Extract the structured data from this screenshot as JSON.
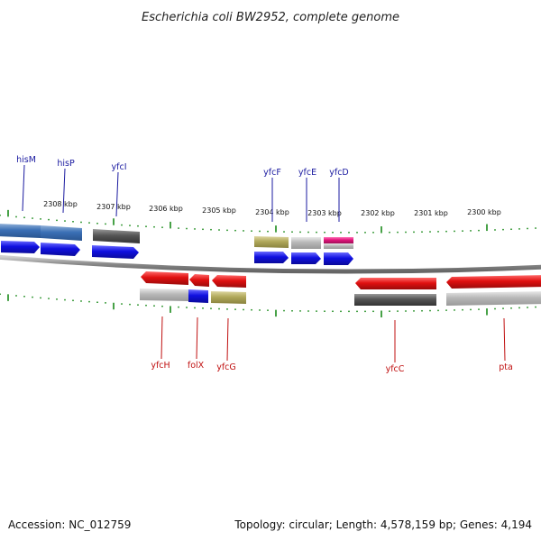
{
  "title": "Escherichia coli BW2952, complete genome",
  "footer": {
    "accession": "Accession: NC_012759",
    "summary": "Topology: circular; Length: 4,578,159 bp; Genes: 4,194"
  },
  "scale_labels": [
    "2308 kbp",
    "2307 kbp",
    "2306 kbp",
    "2305 kbp",
    "2304 kbp",
    "2303 kbp",
    "2302 kbp",
    "2301 kbp",
    "2300 kbp"
  ],
  "forward_genes": [
    {
      "name": "hisM",
      "color": "#3a6fb5"
    },
    {
      "name": "hisP",
      "color": "#3a6fb5"
    },
    {
      "name": "yfcI",
      "color": "#555555"
    },
    {
      "name": "yfcF",
      "color": "#b0a85a"
    },
    {
      "name": "yfcE",
      "color": "#b8b8b8"
    },
    {
      "name": "yfcD",
      "color": "#e0157a"
    }
  ],
  "reverse_genes": [
    {
      "name": "yfcH",
      "color": "#b8b8b8"
    },
    {
      "name": "folX",
      "color": "#1010e0"
    },
    {
      "name": "yfcG",
      "color": "#b0a85a"
    },
    {
      "name": "yfcC",
      "color": "#555555"
    },
    {
      "name": "pta",
      "color": "#b8b8b8"
    }
  ],
  "colors": {
    "forward_strand": "#1010e0",
    "reverse_strand": "#e01010",
    "backbone": "#888888",
    "ticks": "#1a8a1a",
    "forward_label_line": "#1a1aa0",
    "reverse_label_line": "#c01010"
  }
}
